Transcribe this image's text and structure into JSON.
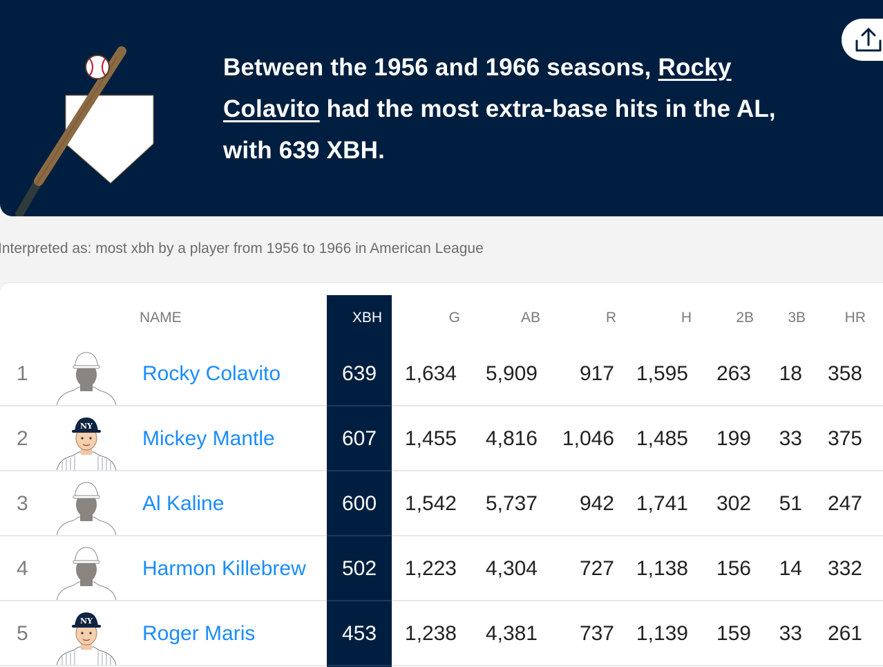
{
  "header": {
    "headline_pre": "Between the 1956 and 1966 seasons,",
    "player_link": "Rocky Colavito",
    "headline_post": "had the most extra-base hits in the AL, with 639 XBH.",
    "illustration_icon": "baseball-bat-home-plate-icon",
    "share_icon": "share-upload-icon",
    "bg_color": "#001f40"
  },
  "interpreted": "Interpreted as: most xbh by a player from 1956 to 1966 in American League",
  "table": {
    "columns": [
      "NAME",
      "XBH",
      "G",
      "AB",
      "R",
      "H",
      "2B",
      "3B",
      "HR"
    ],
    "rows": [
      {
        "rank": "1",
        "name": "Rocky Colavito",
        "avatar": "generic",
        "xbh": "639",
        "g": "1,634",
        "ab": "5,909",
        "r": "917",
        "h": "1,595",
        "b2": "263",
        "b3": "18",
        "hr": "358"
      },
      {
        "rank": "2",
        "name": "Mickey Mantle",
        "avatar": "yankees",
        "xbh": "607",
        "g": "1,455",
        "ab": "4,816",
        "r": "1,046",
        "h": "1,485",
        "b2": "199",
        "b3": "33",
        "hr": "375"
      },
      {
        "rank": "3",
        "name": "Al Kaline",
        "avatar": "generic",
        "xbh": "600",
        "g": "1,542",
        "ab": "5,737",
        "r": "942",
        "h": "1,741",
        "b2": "302",
        "b3": "51",
        "hr": "247"
      },
      {
        "rank": "4",
        "name": "Harmon Killebrew",
        "avatar": "generic",
        "xbh": "502",
        "g": "1,223",
        "ab": "4,304",
        "r": "727",
        "h": "1,138",
        "b2": "156",
        "b3": "14",
        "hr": "332"
      },
      {
        "rank": "5",
        "name": "Roger Maris",
        "avatar": "yankees",
        "xbh": "453",
        "g": "1,238",
        "ab": "4,381",
        "r": "737",
        "h": "1,139",
        "b2": "159",
        "b3": "33",
        "hr": "261"
      }
    ]
  },
  "colors": {
    "link": "#1a8cff",
    "header_bg": "#001f40",
    "highlight_col": "#001f40"
  }
}
